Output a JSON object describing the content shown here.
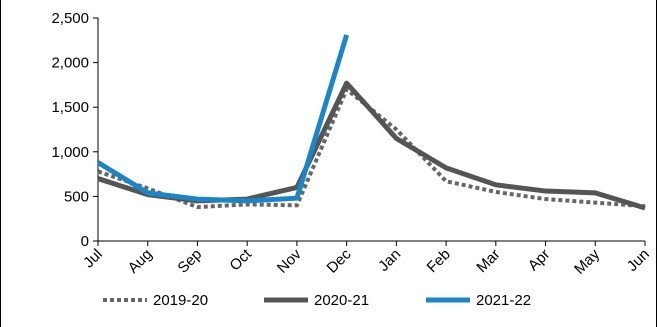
{
  "chart_data": {
    "type": "line",
    "categories": [
      "Jul",
      "Aug",
      "Sep",
      "Oct",
      "Nov",
      "Dec",
      "Jan",
      "Feb",
      "Mar",
      "Apr",
      "May",
      "Jun"
    ],
    "ylim": [
      0,
      2500
    ],
    "yticks": [
      0,
      500,
      1000,
      1500,
      2000,
      2500
    ],
    "ytick_labels": [
      "0",
      "500",
      "1,000",
      "1,500",
      "2,000",
      "2,500"
    ],
    "grid": false,
    "legend_position": "bottom",
    "series": [
      {
        "name": "2019-20",
        "style": "dotted",
        "color": "#666666",
        "values": [
          780,
          590,
          380,
          410,
          400,
          1700,
          1250,
          670,
          550,
          470,
          430,
          390
        ]
      },
      {
        "name": "2020-21",
        "style": "solid",
        "color": "#555555",
        "values": [
          700,
          520,
          450,
          470,
          600,
          1770,
          1150,
          820,
          630,
          560,
          540,
          370
        ]
      },
      {
        "name": "2021-22",
        "style": "solid",
        "color": "#1a86c8",
        "values": [
          880,
          540,
          470,
          450,
          480,
          2310,
          null,
          null,
          null,
          null,
          null,
          null
        ]
      }
    ]
  }
}
